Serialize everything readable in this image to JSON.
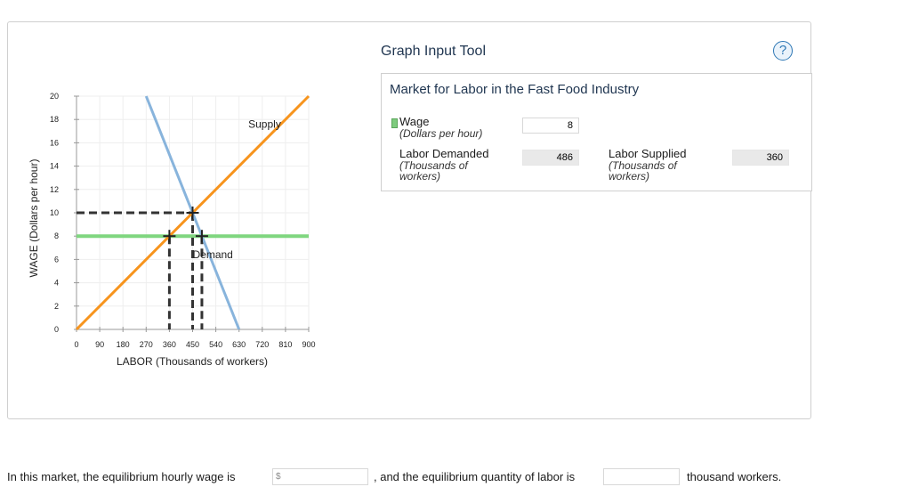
{
  "tool": {
    "title": "Graph Input Tool",
    "help_symbol": "?",
    "market_title": "Market for Labor in the Fast Food Industry",
    "wage_label": "Wage",
    "wage_sub": "(Dollars per hour)",
    "wage_value": "8",
    "ld_label": "Labor Demanded",
    "ld_sub1": "(Thousands of",
    "ld_sub2": "workers)",
    "ld_value": "486",
    "ls_label": "Labor Supplied",
    "ls_sub1": "(Thousands of",
    "ls_sub2": "workers)",
    "ls_value": "360"
  },
  "question": {
    "part1": "In this market, the equilibrium hourly wage is",
    "dollar": "$",
    "part2": ", and the equilibrium quantity of labor is",
    "part3": "thousand workers."
  },
  "chart_data": {
    "type": "line",
    "xlabel": "LABOR (Thousands of workers)",
    "ylabel": "WAGE (Dollars per hour)",
    "xlim": [
      0,
      900
    ],
    "ylim": [
      0,
      20
    ],
    "xticks": [
      0,
      90,
      180,
      270,
      360,
      450,
      540,
      630,
      720,
      810,
      900
    ],
    "yticks": [
      0,
      2,
      4,
      6,
      8,
      10,
      12,
      14,
      16,
      18,
      20
    ],
    "grid": true,
    "colors": {
      "demand": "#88b4dc",
      "supply": "#f7941d",
      "wage_line": "#7fd67f",
      "dashed": "#333333"
    },
    "series": [
      {
        "name": "Demand",
        "x": [
          270,
          630
        ],
        "y": [
          20,
          0
        ]
      },
      {
        "name": "Supply",
        "x": [
          0,
          900
        ],
        "y": [
          0,
          20
        ]
      }
    ],
    "wage_line": {
      "y": 8
    },
    "annotations": [
      {
        "text": "Supply",
        "x": 666,
        "y": 17.3
      },
      {
        "text": "Demand",
        "x": 450,
        "y": 6.1
      }
    ],
    "points": [
      {
        "x": 450,
        "y": 10
      },
      {
        "x": 360,
        "y": 8
      },
      {
        "x": 486,
        "y": 8
      }
    ]
  }
}
